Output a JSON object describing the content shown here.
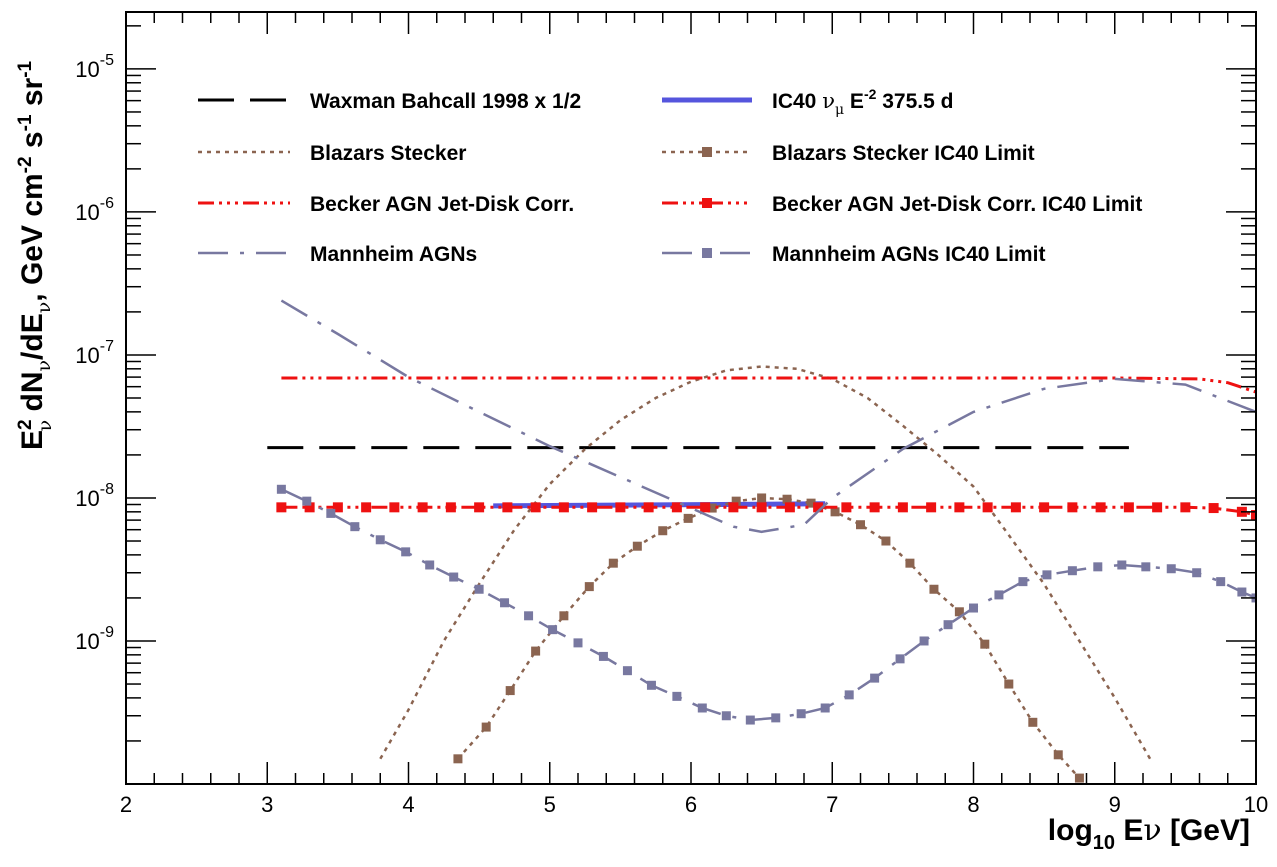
{
  "chart_data": {
    "type": "line",
    "xlabel": {
      "main": "log",
      "sub": "10",
      "e": " E",
      "nu": "ν",
      "unit": " [GeV]"
    },
    "ylabel": {
      "e": "E",
      "e_sup": "2",
      "e_sub": "ν",
      "mid1": " dN",
      "mid1_sub": "ν",
      "mid2": "/dE",
      "mid2_sub": "ν",
      "unit1": ", GeV cm",
      "unit1_sup": "-2",
      "unit2": " s",
      "unit2_sup": "-1",
      "unit3": " sr",
      "unit3_sup": "-1"
    },
    "xlim": [
      2,
      10
    ],
    "ylim": [
      1e-10,
      2.5e-05
    ],
    "yscale": "log",
    "x_ticks": [
      2,
      3,
      4,
      5,
      6,
      7,
      8,
      9,
      10
    ],
    "x_tick_labels": [
      "2",
      "3",
      "4",
      "5",
      "6",
      "7",
      "8",
      "9",
      "10"
    ],
    "y_tick_labels": [
      {
        "base": "10",
        "exp": "-9",
        "value": 1e-09
      },
      {
        "base": "10",
        "exp": "-8",
        "value": 1e-08
      },
      {
        "base": "10",
        "exp": "-7",
        "value": 1e-07
      },
      {
        "base": "10",
        "exp": "-6",
        "value": 1e-06
      },
      {
        "base": "10",
        "exp": "-5",
        "value": 1e-05
      }
    ],
    "legend_items": [
      {
        "text": "Waxman Bahcall 1998 x 1/2",
        "series": "wb"
      },
      {
        "text": "IC40 ",
        "nu": "ν",
        "mu": "μ",
        "rest": " E",
        "sup": "-2",
        "tail": " 375.5 d",
        "series": "ic40"
      },
      {
        "text": "Blazars Stecker",
        "series": "stecker"
      },
      {
        "text": "Blazars Stecker IC40 Limit",
        "series": "stecker_lim"
      },
      {
        "text": "Becker AGN Jet-Disk Corr.",
        "series": "becker"
      },
      {
        "text": "Becker AGN Jet-Disk Corr. IC40 Limit",
        "series": "becker_lim"
      },
      {
        "text": "Mannheim AGNs",
        "series": "mannheim"
      },
      {
        "text": "Mannheim AGNs IC40 Limit",
        "series": "mannheim_lim"
      }
    ],
    "series": [
      {
        "id": "wb",
        "color": "#000000",
        "dash": "long",
        "markers": false,
        "x": [
          3.0,
          9.1
        ],
        "y": [
          2.25e-08,
          2.25e-08
        ]
      },
      {
        "id": "ic40",
        "color": "#5555dd",
        "dash": "solid",
        "markers": false,
        "x": [
          4.6,
          6.95
        ],
        "y": [
          8.8e-09,
          9.1e-09
        ]
      },
      {
        "id": "stecker",
        "color": "#8b6450",
        "dash": "dot",
        "markers": false,
        "x": [
          3.8,
          4.0,
          4.25,
          4.5,
          4.75,
          5.0,
          5.25,
          5.5,
          5.75,
          6.0,
          6.25,
          6.5,
          6.75,
          7.0,
          7.25,
          7.5,
          7.75,
          8.0,
          8.25,
          8.5,
          8.75,
          9.0,
          9.25
        ],
        "y": [
          1.5e-10,
          3.3e-10,
          1e-09,
          2.5e-09,
          6e-09,
          1.25e-08,
          2.2e-08,
          3.5e-08,
          5e-08,
          6.5e-08,
          7.8e-08,
          8.3e-08,
          8e-08,
          6.8e-08,
          5e-08,
          3.2e-08,
          2e-08,
          1.2e-08,
          5.5e-09,
          2.5e-09,
          1e-09,
          4e-10,
          1.5e-10
        ]
      },
      {
        "id": "stecker_lim",
        "color": "#8b6450",
        "dash": "dot",
        "markers": true,
        "x": [
          4.35,
          4.55,
          4.72,
          4.9,
          5.1,
          5.28,
          5.45,
          5.62,
          5.8,
          5.98,
          6.15,
          6.32,
          6.5,
          6.68,
          6.85,
          7.02,
          7.2,
          7.38,
          7.55,
          7.72,
          7.9,
          8.08,
          8.25,
          8.42,
          8.6,
          8.75
        ],
        "y": [
          1.5e-10,
          2.5e-10,
          4.5e-10,
          8.5e-10,
          1.5e-09,
          2.4e-09,
          3.5e-09,
          4.6e-09,
          5.9e-09,
          7.2e-09,
          8.5e-09,
          9.5e-09,
          1e-08,
          9.8e-09,
          9.2e-09,
          8e-09,
          6.5e-09,
          5e-09,
          3.5e-09,
          2.3e-09,
          1.6e-09,
          9.5e-10,
          5e-10,
          2.7e-10,
          1.6e-10,
          1.1e-10
        ]
      },
      {
        "id": "becker",
        "color": "#ee1111",
        "dash": "dashdotdotdot",
        "markers": false,
        "x": [
          3.1,
          4.0,
          5.0,
          6.0,
          7.0,
          8.0,
          9.0,
          9.6,
          9.8,
          10.0
        ],
        "y": [
          6.9e-08,
          6.9e-08,
          6.9e-08,
          6.9e-08,
          6.9e-08,
          6.9e-08,
          6.9e-08,
          6.8e-08,
          6.4e-08,
          5.5e-08
        ]
      },
      {
        "id": "becker_lim",
        "color": "#ee1111",
        "dash": "dashdotdotdot",
        "markers": true,
        "x": [
          3.1,
          3.3,
          3.5,
          3.7,
          3.9,
          4.1,
          4.3,
          4.5,
          4.7,
          4.9,
          5.1,
          5.3,
          5.5,
          5.7,
          5.9,
          6.1,
          6.3,
          6.5,
          6.7,
          6.9,
          7.1,
          7.3,
          7.5,
          7.7,
          7.9,
          8.1,
          8.3,
          8.5,
          8.7,
          8.9,
          9.1,
          9.3,
          9.5,
          9.7,
          9.9,
          10.0
        ],
        "y": [
          8.6e-09,
          8.6e-09,
          8.6e-09,
          8.6e-09,
          8.6e-09,
          8.6e-09,
          8.6e-09,
          8.6e-09,
          8.6e-09,
          8.6e-09,
          8.6e-09,
          8.6e-09,
          8.6e-09,
          8.6e-09,
          8.6e-09,
          8.6e-09,
          8.6e-09,
          8.6e-09,
          8.6e-09,
          8.6e-09,
          8.6e-09,
          8.6e-09,
          8.6e-09,
          8.6e-09,
          8.6e-09,
          8.6e-09,
          8.6e-09,
          8.6e-09,
          8.6e-09,
          8.6e-09,
          8.6e-09,
          8.6e-09,
          8.6e-09,
          8.5e-09,
          8e-09,
          7.6e-09
        ]
      },
      {
        "id": "mannheim",
        "color": "#7878a0",
        "dash": "dashdot",
        "markers": false,
        "x": [
          3.1,
          3.5,
          4.0,
          4.5,
          5.0,
          5.5,
          6.0,
          6.3,
          6.5,
          6.8,
          7.0,
          7.5,
          8.0,
          8.5,
          9.0,
          9.5,
          10.0
        ],
        "y": [
          2.4e-07,
          1.4e-07,
          7e-08,
          4e-08,
          2.3e-08,
          1.4e-08,
          8.5e-09,
          6.3e-09,
          5.8e-09,
          6.5e-09,
          1e-08,
          2.2e-08,
          4e-08,
          5.8e-08,
          6.8e-08,
          6.2e-08,
          4e-08
        ]
      },
      {
        "id": "mannheim_lim",
        "color": "#7878a0",
        "dash": "dashdot",
        "markers": true,
        "x": [
          3.1,
          3.28,
          3.45,
          3.62,
          3.8,
          3.98,
          4.15,
          4.32,
          4.5,
          4.68,
          4.85,
          5.02,
          5.2,
          5.38,
          5.55,
          5.72,
          5.9,
          6.08,
          6.25,
          6.42,
          6.6,
          6.78,
          6.95,
          7.12,
          7.3,
          7.48,
          7.65,
          7.82,
          8.0,
          8.18,
          8.35,
          8.52,
          8.7,
          8.88,
          9.05,
          9.22,
          9.4,
          9.58,
          9.75,
          9.9,
          10.0
        ],
        "y": [
          1.15e-08,
          9.5e-09,
          7.8e-09,
          6.3e-09,
          5.1e-09,
          4.2e-09,
          3.4e-09,
          2.8e-09,
          2.3e-09,
          1.85e-09,
          1.5e-09,
          1.2e-09,
          9.7e-10,
          7.8e-10,
          6.2e-10,
          4.9e-10,
          4.1e-10,
          3.4e-10,
          3e-10,
          2.8e-10,
          2.9e-10,
          3.1e-10,
          3.4e-10,
          4.2e-10,
          5.5e-10,
          7.5e-10,
          1e-09,
          1.3e-09,
          1.7e-09,
          2.1e-09,
          2.6e-09,
          2.9e-09,
          3.1e-09,
          3.3e-09,
          3.4e-09,
          3.3e-09,
          3.2e-09,
          3e-09,
          2.6e-09,
          2.2e-09,
          2e-09
        ]
      }
    ]
  }
}
